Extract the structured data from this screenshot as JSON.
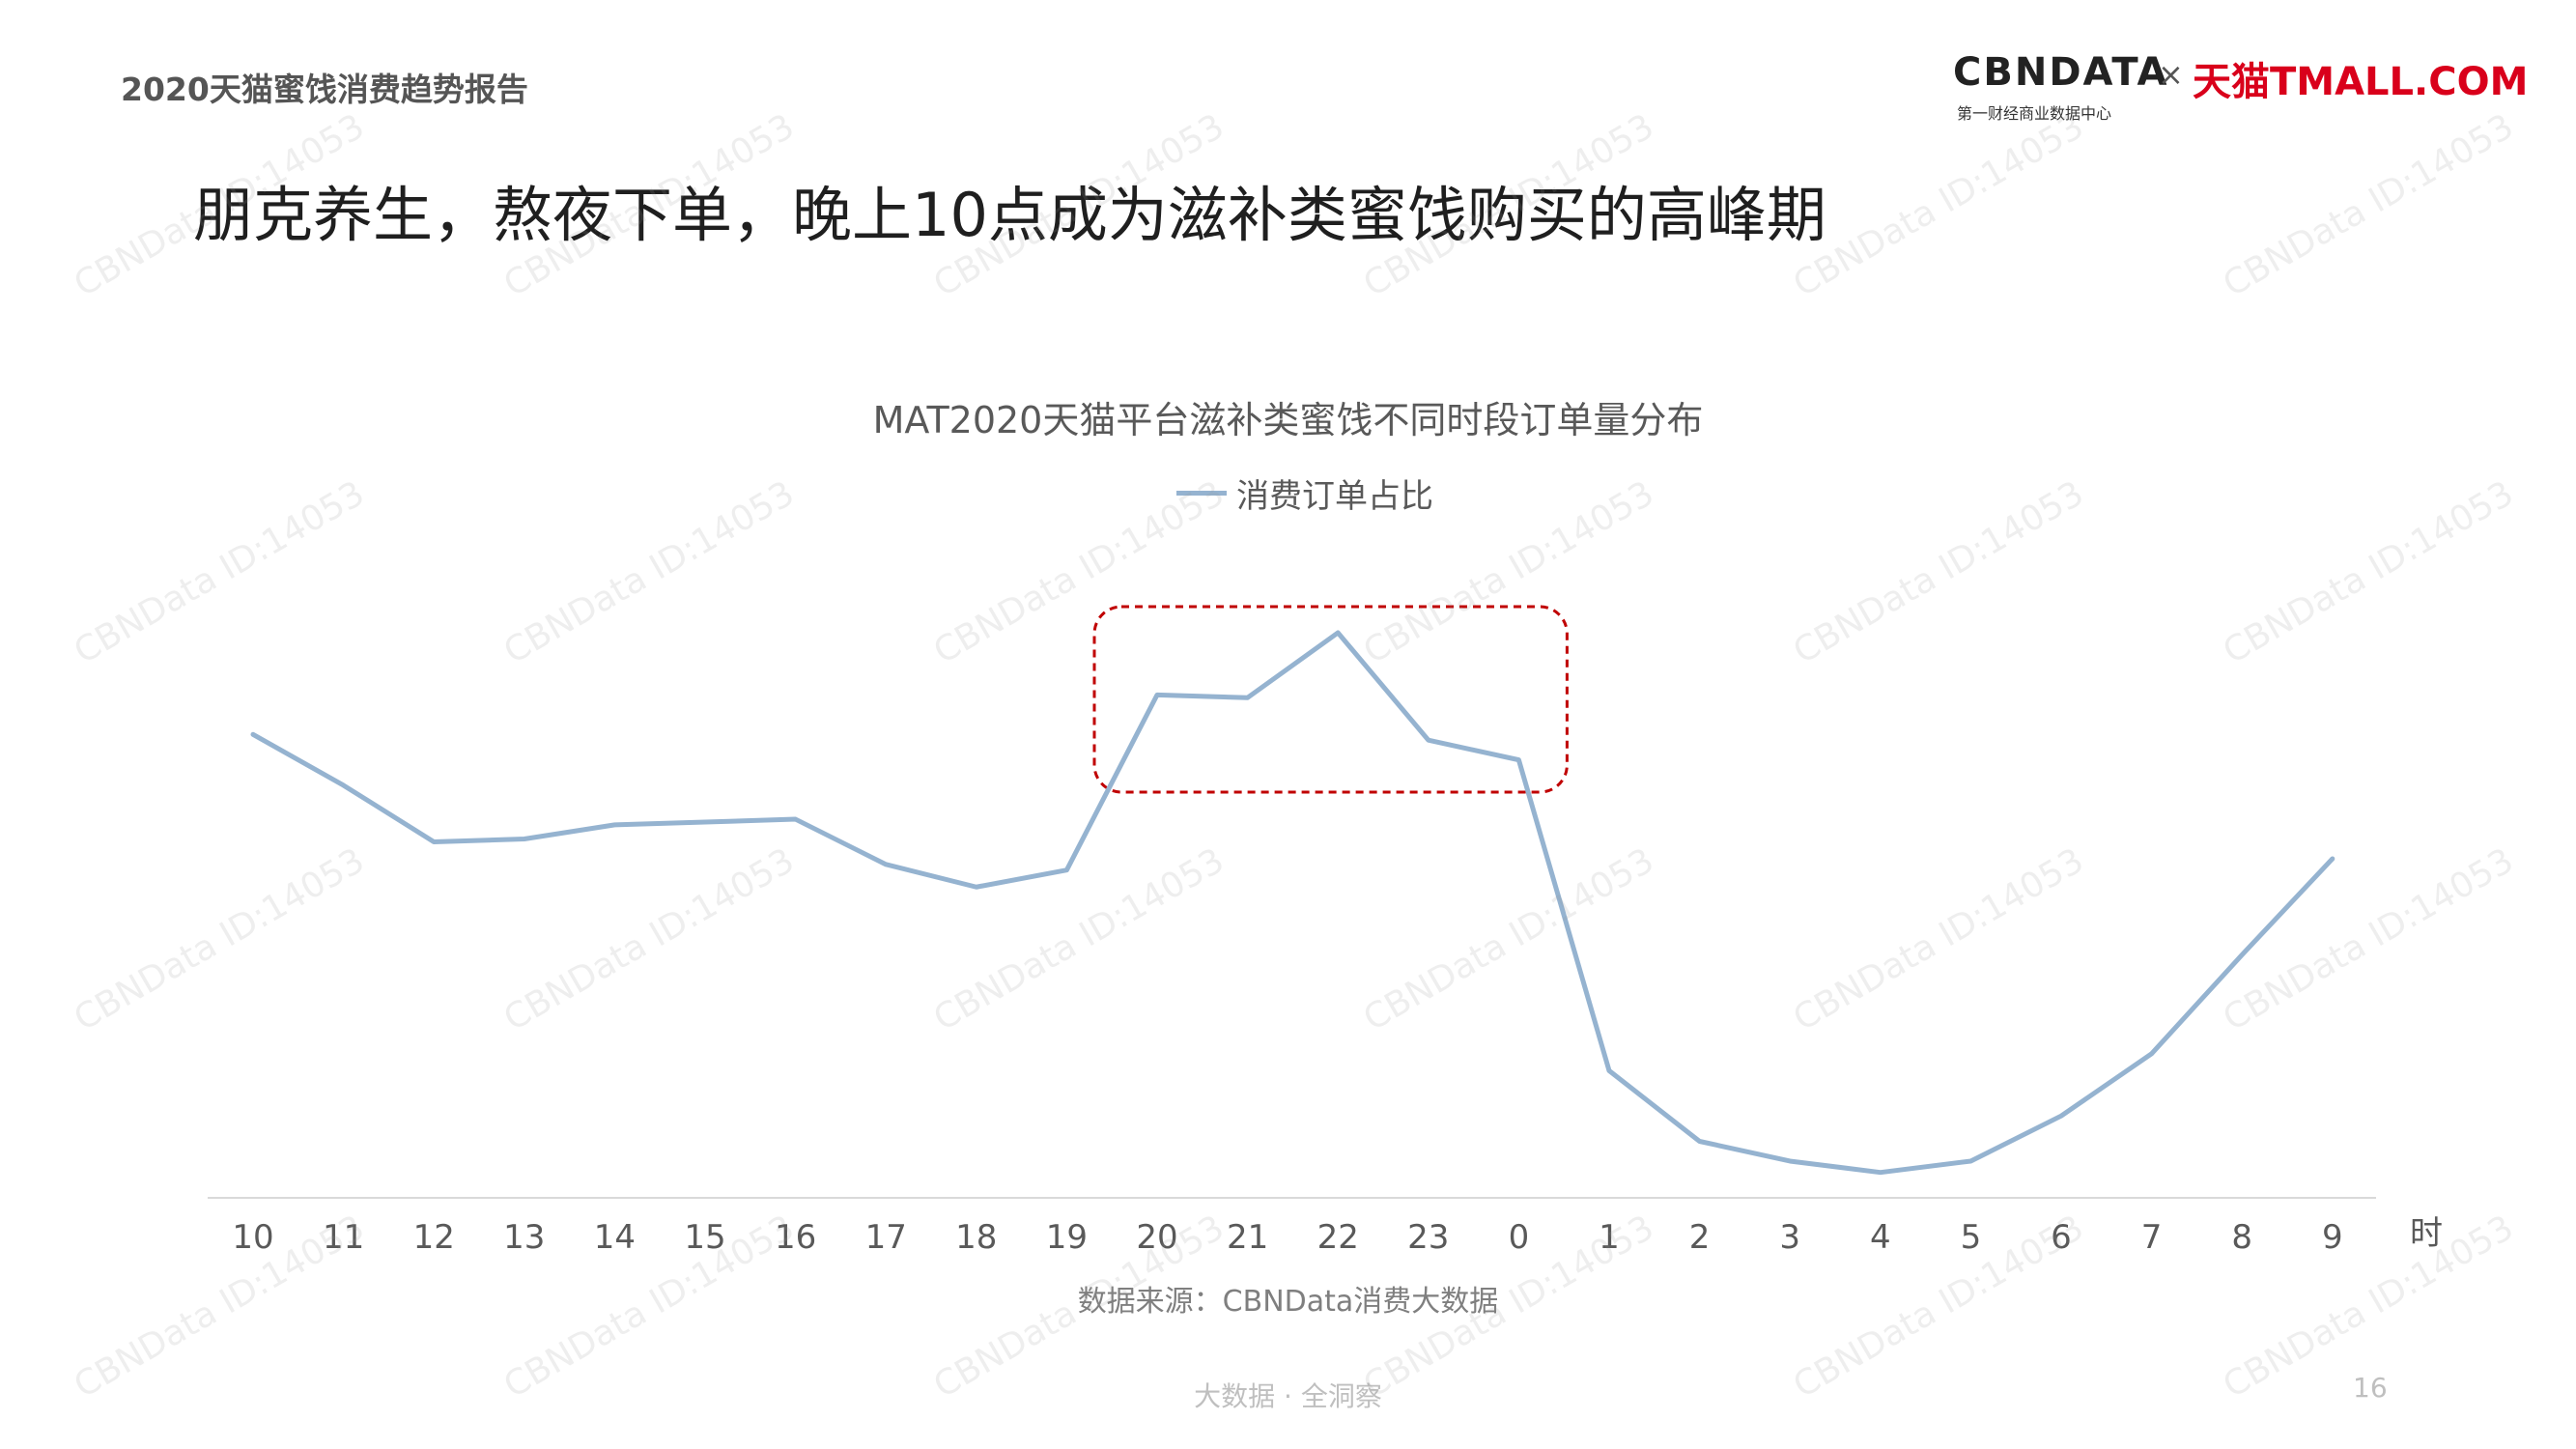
{
  "header": {
    "report_title": "2020天猫蜜饯消费趋势报告",
    "headline": "朋克养生，熬夜下单，晚上10点成为滋补类蜜饯购买的高峰期"
  },
  "logo": {
    "cbn_text": "CBNDATA",
    "cbn_subtitle": "第一财经商业数据中心",
    "separator": "×",
    "tmall_text": "天猫TMALL.COM"
  },
  "chart_data": {
    "type": "line",
    "title": "MAT2020天猫平台滋补类蜜饯不同时段订单量分布",
    "xlabel": "时",
    "ylabel": "",
    "categories": [
      "10",
      "11",
      "12",
      "13",
      "14",
      "15",
      "16",
      "17",
      "18",
      "19",
      "20",
      "21",
      "22",
      "23",
      "0",
      "1",
      "2",
      "3",
      "4",
      "5",
      "6",
      "7",
      "8",
      "9"
    ],
    "series": [
      {
        "name": "消费订单占比",
        "values": [
          0.82,
          0.73,
          0.63,
          0.635,
          0.66,
          0.665,
          0.67,
          0.59,
          0.55,
          0.58,
          0.89,
          0.885,
          1.0,
          0.81,
          0.775,
          0.225,
          0.1,
          0.065,
          0.045,
          0.065,
          0.145,
          0.255,
          0.43,
          0.6
        ],
        "color": "#95b3d0"
      }
    ],
    "ylim": [
      0,
      1.05
    ],
    "grid": false,
    "legend_position": "top-center",
    "y_axis_labels_shown": false,
    "highlight": {
      "from_category": "20",
      "to_category": "0",
      "style": "dashed rounded rectangle",
      "color": "#c00000"
    }
  },
  "source": "数据来源：CBNData消费大数据",
  "footer": {
    "slogan": "大数据 · 全洞察",
    "page_number": "16"
  },
  "watermark": "CBNData ID:14053"
}
